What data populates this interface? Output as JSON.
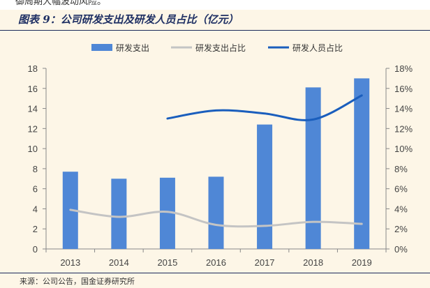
{
  "header": {
    "top_fragment": "御周期大幅波动风险。",
    "figure_title": "图表 9：公司研发支出及研发人员占比（亿元）"
  },
  "footer": {
    "source": "来源：公司公告，国金证券研究所"
  },
  "colors": {
    "bar": "#4f87d6",
    "spend_ratio_line": "#c4c4c4",
    "staff_ratio_line": "#1a5ebd",
    "background": "#fdf6e7"
  },
  "chart_data": {
    "type": "bar",
    "categories": [
      "2013",
      "2014",
      "2015",
      "2016",
      "2017",
      "2018",
      "2019"
    ],
    "series": [
      {
        "name": "研发支出",
        "type": "bar",
        "axis": "left",
        "values": [
          7.7,
          7.0,
          7.1,
          7.2,
          12.4,
          16.1,
          17.0
        ]
      },
      {
        "name": "研发支出占比",
        "type": "line",
        "axis": "right",
        "values": [
          3.9,
          3.2,
          3.7,
          2.4,
          2.3,
          2.7,
          2.5
        ]
      },
      {
        "name": "研发人员占比",
        "type": "line",
        "axis": "right",
        "values": [
          null,
          null,
          13.0,
          13.8,
          13.5,
          12.9,
          15.3
        ]
      }
    ],
    "y_left": {
      "min": 0,
      "max": 18,
      "step": 2,
      "ticks": [
        "0",
        "2",
        "4",
        "6",
        "8",
        "10",
        "12",
        "14",
        "16",
        "18"
      ]
    },
    "y_right": {
      "min": 0,
      "max": 18,
      "step": 2,
      "ticks": [
        "0%",
        "2%",
        "4%",
        "6%",
        "8%",
        "10%",
        "12%",
        "14%",
        "16%",
        "18%"
      ]
    },
    "legend_position": "top-center",
    "grid": false
  }
}
